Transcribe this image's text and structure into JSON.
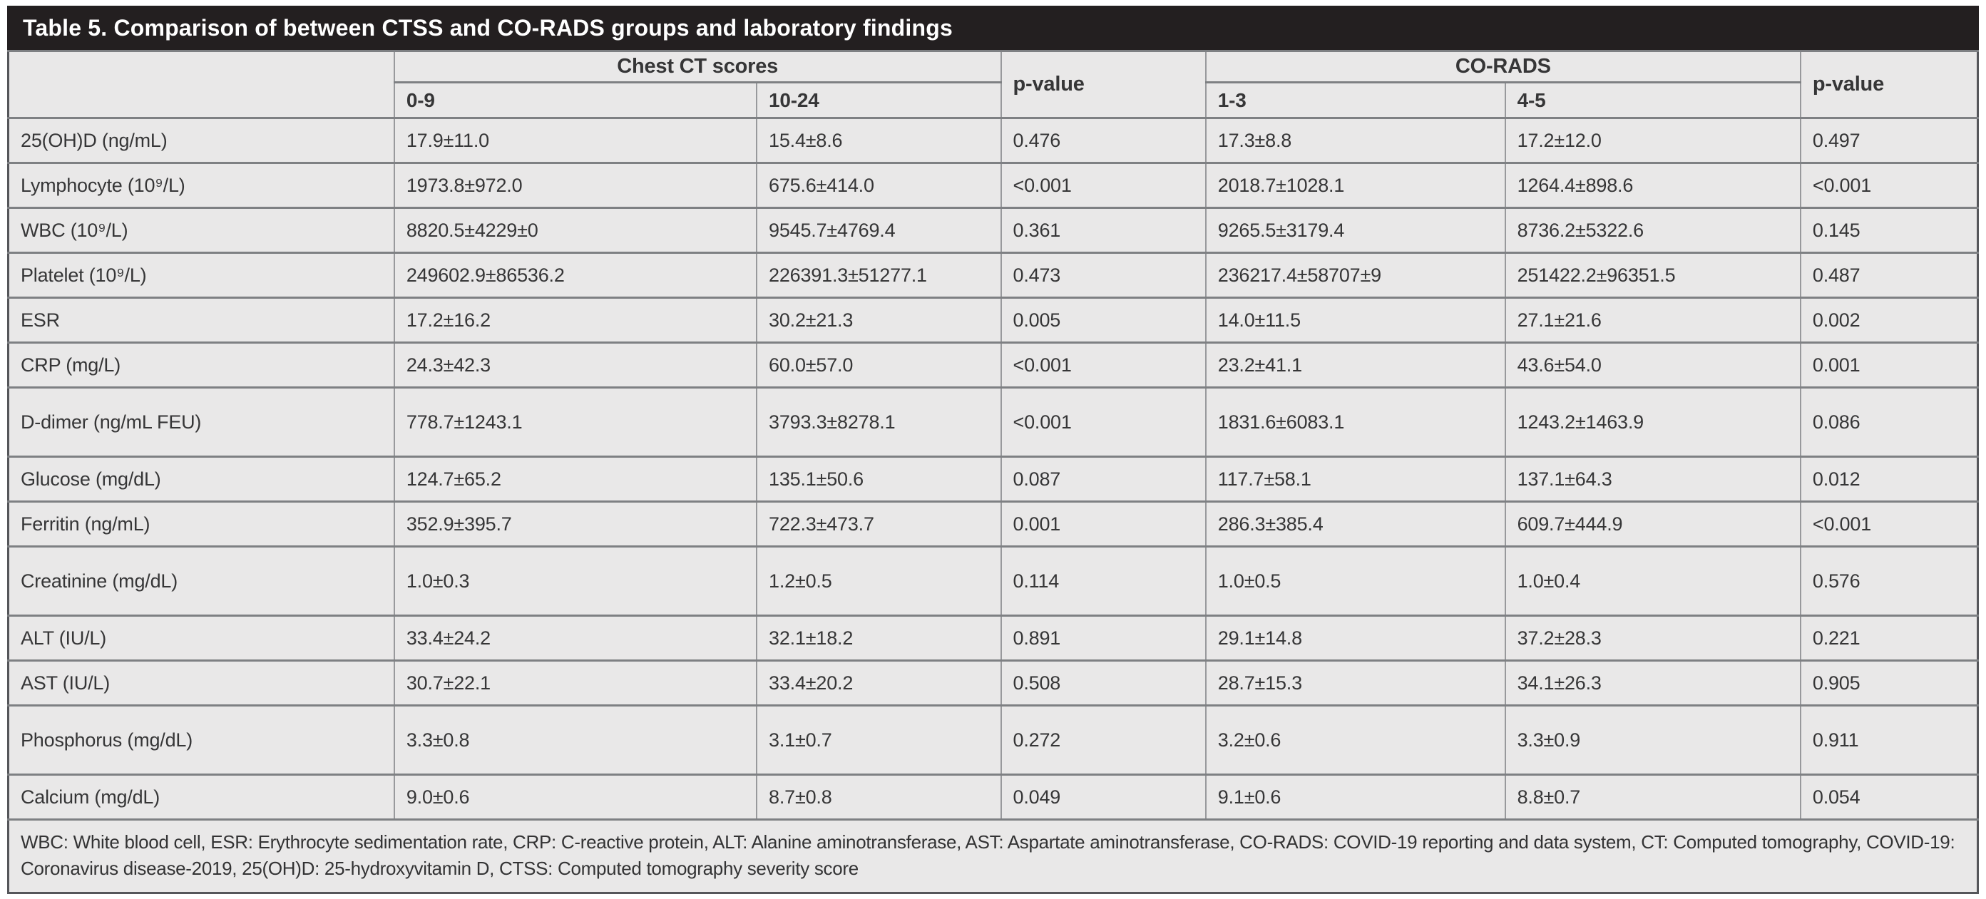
{
  "title": "Table 5. Comparison of between CTSS and CO-RADS groups and laboratory findings",
  "columns": {
    "chest_ct_group": "Chest CT scores",
    "corads_group": "CO-RADS",
    "p_value_ct": "p-value",
    "p_value_corads": "p-value",
    "ct_low": "0-9",
    "ct_high": "10-24",
    "corads_low": "1-3",
    "corads_high": "4-5"
  },
  "rows": [
    {
      "label": "25(OH)D (ng/mL)",
      "ct_low": "17.9±11.0",
      "ct_high": "15.4±8.6",
      "p_ct": "0.476",
      "corads_low": "17.3±8.8",
      "corads_high": "17.2±12.0",
      "p_corads": "0.497"
    },
    {
      "label": "Lymphocyte (10⁹/L)",
      "ct_low": "1973.8±972.0",
      "ct_high": "675.6±414.0",
      "p_ct": "<0.001",
      "corads_low": "2018.7±1028.1",
      "corads_high": "1264.4±898.6",
      "p_corads": "<0.001"
    },
    {
      "label": "WBC (10⁹/L)",
      "ct_low": "8820.5±4229±0",
      "ct_high": "9545.7±4769.4",
      "p_ct": "0.361",
      "corads_low": "9265.5±3179.4",
      "corads_high": "8736.2±5322.6",
      "p_corads": "0.145"
    },
    {
      "label": "Platelet (10⁹/L)",
      "ct_low": "249602.9±86536.2",
      "ct_high": "226391.3±51277.1",
      "p_ct": "0.473",
      "corads_low": "236217.4±58707±9",
      "corads_high": "251422.2±96351.5",
      "p_corads": "0.487"
    },
    {
      "label": "ESR",
      "ct_low": "17.2±16.2",
      "ct_high": "30.2±21.3",
      "p_ct": "0.005",
      "corads_low": "14.0±11.5",
      "corads_high": "27.1±21.6",
      "p_corads": "0.002"
    },
    {
      "label": "CRP (mg/L)",
      "ct_low": "24.3±42.3",
      "ct_high": "60.0±57.0",
      "p_ct": "<0.001",
      "corads_low": "23.2±41.1",
      "corads_high": "43.6±54.0",
      "p_corads": "0.001"
    },
    {
      "label": "D-dimer (ng/mL FEU)",
      "ct_low": "778.7±1243.1",
      "ct_high": "3793.3±8278.1",
      "p_ct": "<0.001",
      "corads_low": "1831.6±6083.1",
      "corads_high": "1243.2±1463.9",
      "p_corads": "0.086"
    },
    {
      "label": "Glucose (mg/dL)",
      "ct_low": "124.7±65.2",
      "ct_high": "135.1±50.6",
      "p_ct": "0.087",
      "corads_low": "117.7±58.1",
      "corads_high": "137.1±64.3",
      "p_corads": "0.012"
    },
    {
      "label": "Ferritin (ng/mL)",
      "ct_low": "352.9±395.7",
      "ct_high": "722.3±473.7",
      "p_ct": "0.001",
      "corads_low": "286.3±385.4",
      "corads_high": "609.7±444.9",
      "p_corads": "<0.001"
    },
    {
      "label": "Creatinine (mg/dL)",
      "ct_low": "1.0±0.3",
      "ct_high": "1.2±0.5",
      "p_ct": "0.114",
      "corads_low": "1.0±0.5",
      "corads_high": "1.0±0.4",
      "p_corads": "0.576"
    },
    {
      "label": "ALT (IU/L)",
      "ct_low": "33.4±24.2",
      "ct_high": "32.1±18.2",
      "p_ct": "0.891",
      "corads_low": "29.1±14.8",
      "corads_high": "37.2±28.3",
      "p_corads": "0.221"
    },
    {
      "label": "AST (IU/L)",
      "ct_low": "30.7±22.1",
      "ct_high": "33.4±20.2",
      "p_ct": "0.508",
      "corads_low": "28.7±15.3",
      "corads_high": "34.1±26.3",
      "p_corads": "0.905"
    },
    {
      "label": "Phosphorus (mg/dL)",
      "ct_low": "3.3±0.8",
      "ct_high": "3.1±0.7",
      "p_ct": "0.272",
      "corads_low": "3.2±0.6",
      "corads_high": "3.3±0.9",
      "p_corads": "0.911"
    },
    {
      "label": "Calcium (mg/dL)",
      "ct_low": "9.0±0.6",
      "ct_high": "8.7±0.8",
      "p_ct": "0.049",
      "corads_low": "9.1±0.6",
      "corads_high": "8.8±0.7",
      "p_corads": "0.054"
    }
  ],
  "footnote": "WBC: White blood cell, ESR: Erythrocyte sedimentation rate, CRP: C-reactive protein, ALT: Alanine aminotransferase, AST: Aspartate aminotransferase, CO-RADS: COVID-19 reporting and data system, CT: Computed tomography, COVID-19: Coronavirus disease-2019, 25(OH)D: 25-hydroxyvitamin D, CTSS: Computed tomography severity score",
  "colors": {
    "title_bar_bg": "#231f20",
    "title_text": "#ffffff",
    "cell_bg": "#e9e8e8",
    "border_inner": "#98999c",
    "border_outer": "#55565a",
    "text": "#363637"
  }
}
